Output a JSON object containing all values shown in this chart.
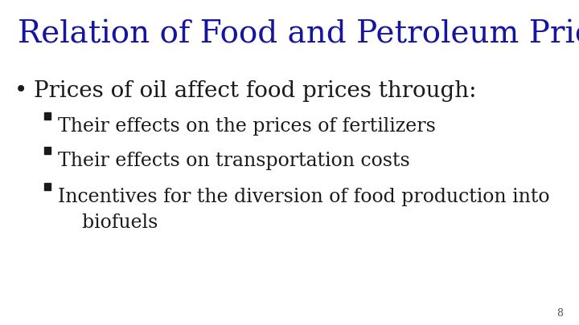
{
  "title": "Relation of Food and Petroleum Prices",
  "title_color": "#1515a0",
  "title_fontsize": 28,
  "background_color": "#ffffff",
  "bullet1": "Prices of oil affect food prices through:",
  "bullet1_fontsize": 20,
  "sub_bullets": [
    "Their effects on the prices of fertilizers",
    "Their effects on transportation costs",
    "Incentives for the diversion of food production into\n    biofuels"
  ],
  "sub_bullet_fontsize": 17,
  "text_color": "#1a1a1a",
  "page_number": "8",
  "page_number_fontsize": 9
}
